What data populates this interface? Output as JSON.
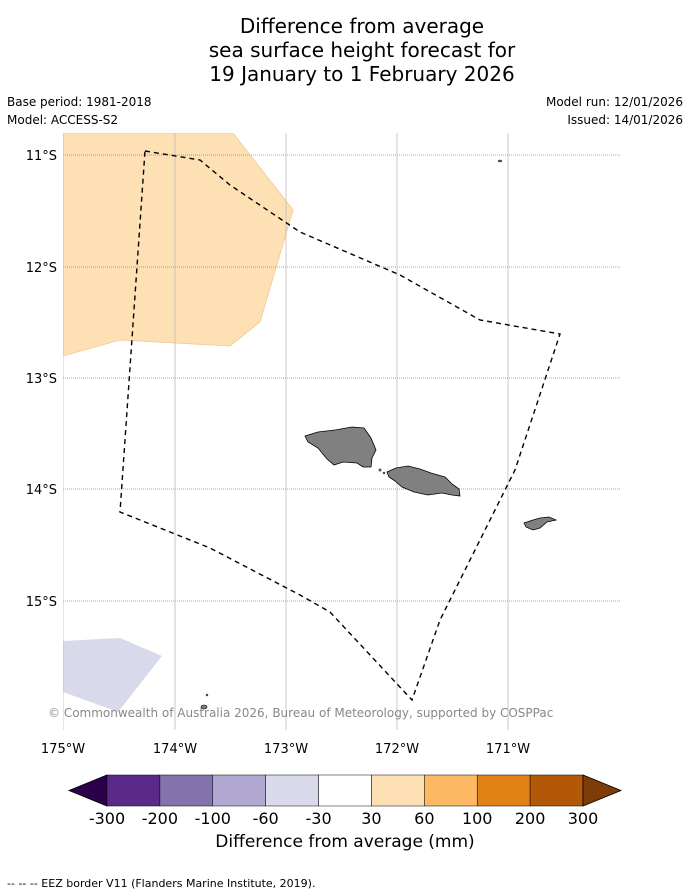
{
  "title": {
    "line1": "Difference from average",
    "line2": "sea surface height forecast for",
    "line3": "19 January to 1 February 2026"
  },
  "meta": {
    "base_period": "Base period: 1981-2018",
    "model": "Model: ACCESS-S2",
    "model_run": "Model run: 12/01/2026",
    "issued": "Issued: 14/01/2026"
  },
  "axes": {
    "lat_labels": [
      "11°S",
      "12°S",
      "13°S",
      "14°S",
      "15°S"
    ],
    "lon_labels": [
      "175°W",
      "174°W",
      "173°W",
      "172°W",
      "171°W"
    ]
  },
  "copyright": "© Commonwealth of Australia 2026, Bureau of Meteorology, supported by COSPPac",
  "colorbar": {
    "title": "Difference from average (mm)",
    "tick_labels": [
      "-300",
      "-200",
      "-100",
      "-60",
      "-30",
      "30",
      "60",
      "100",
      "200",
      "300"
    ],
    "colors": [
      "#5a2a8a",
      "#8272ad",
      "#b1a9d2",
      "#d9d9ec",
      "#ffffff",
      "#fee0b5",
      "#fdb863",
      "#e08214",
      "#b35806"
    ],
    "under_color": "#2d004b",
    "over_color": "#7f3b08"
  },
  "footer": "--  --  -- EEZ border V11 (Flanders Marine Institute, 2019)."
}
